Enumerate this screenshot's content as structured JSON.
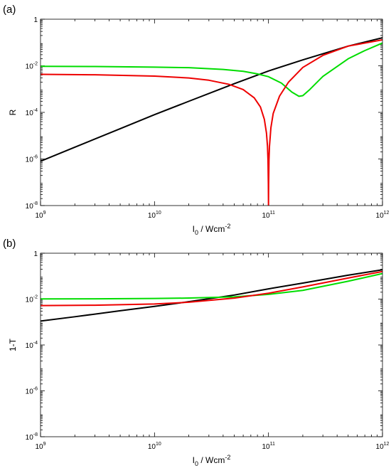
{
  "chart_data": [
    {
      "type": "line",
      "panel_label": "(a)",
      "xlabel": "I",
      "xlabel_sub": "0",
      "xlabel_unit": " / Wcm",
      "xlabel_sup": "-2",
      "ylabel": "R",
      "xscale": "log",
      "yscale": "log",
      "xlim": [
        1000000000.0,
        1000000000000.0
      ],
      "ylim": [
        1e-08,
        1
      ],
      "grid": false,
      "x_ticks": [
        {
          "base": "10",
          "exp": "9",
          "value": 1000000000.0
        },
        {
          "base": "10",
          "exp": "10",
          "value": 10000000000.0
        },
        {
          "base": "10",
          "exp": "11",
          "value": 100000000000.0
        },
        {
          "base": "10",
          "exp": "12",
          "value": 1000000000000.0
        }
      ],
      "y_ticks": [
        {
          "base": "1",
          "exp": "",
          "value": 1
        },
        {
          "base": "10",
          "exp": "-2",
          "value": 0.01
        },
        {
          "base": "10",
          "exp": "-4",
          "value": 0.0001
        },
        {
          "base": "10",
          "exp": "-6",
          "value": 1e-06
        },
        {
          "base": "10",
          "exp": "-8",
          "value": 1e-08
        }
      ],
      "series": [
        {
          "color": "#000000",
          "x": [
            1000000000.0,
            2000000000.0,
            5000000000.0,
            10000000000.0,
            20000000000.0,
            50000000000.0,
            100000000000.0,
            200000000000.0,
            500000000000.0,
            1000000000000.0
          ],
          "y": [
            8e-07,
            3.2e-06,
            2e-05,
            8e-05,
            0.0003,
            0.0017,
            0.006,
            0.018,
            0.07,
            0.16
          ]
        },
        {
          "color": "#00dd00",
          "x": [
            1000000000.0,
            3000000000.0,
            10000000000.0,
            20000000000.0,
            40000000000.0,
            60000000000.0,
            80000000000.0,
            100000000000.0,
            130000000000.0,
            160000000000.0,
            185000000000.0,
            200000000000.0,
            230000000000.0,
            300000000000.0,
            500000000000.0,
            700000000000.0,
            1000000000000.0
          ],
          "y": [
            0.0095,
            0.0093,
            0.0088,
            0.0083,
            0.007,
            0.0058,
            0.0045,
            0.0034,
            0.0018,
            0.00075,
            0.00049,
            0.00052,
            0.00095,
            0.0035,
            0.02,
            0.045,
            0.095
          ]
        },
        {
          "color": "#ee0000",
          "x": [
            1000000000.0,
            3000000000.0,
            10000000000.0,
            20000000000.0,
            30000000000.0,
            45000000000.0,
            60000000000.0,
            75000000000.0,
            85000000000.0,
            92000000000.0,
            96000000000.0,
            98000000000.0,
            99000000000.0,
            99700000000.0,
            100000000000.0,
            100300000000.0,
            101000000000.0,
            102000000000.0,
            105000000000.0,
            110000000000.0,
            125000000000.0,
            150000000000.0,
            200000000000.0,
            300000000000.0,
            500000000000.0,
            1000000000000.0
          ],
          "y": [
            0.0043,
            0.0041,
            0.0036,
            0.003,
            0.0024,
            0.0016,
            0.00095,
            0.00042,
            0.00017,
            5e-05,
            1.3e-05,
            3.5e-06,
            9e-07,
            8e-08,
            1e-08,
            8e-08,
            9e-07,
            3.5e-06,
            2.2e-05,
            9e-05,
            0.0005,
            0.002,
            0.0085,
            0.028,
            0.07,
            0.13
          ]
        }
      ]
    },
    {
      "type": "line",
      "panel_label": "(b)",
      "xlabel": "I",
      "xlabel_sub": "0",
      "xlabel_unit": " / Wcm",
      "xlabel_sup": "-2",
      "ylabel": "1-T",
      "xscale": "log",
      "yscale": "log",
      "xlim": [
        1000000000.0,
        1000000000000.0
      ],
      "ylim": [
        1e-08,
        1
      ],
      "grid": false,
      "x_ticks": [
        {
          "base": "10",
          "exp": "9",
          "value": 1000000000.0
        },
        {
          "base": "10",
          "exp": "10",
          "value": 10000000000.0
        },
        {
          "base": "10",
          "exp": "11",
          "value": 100000000000.0
        },
        {
          "base": "10",
          "exp": "12",
          "value": 1000000000000.0
        }
      ],
      "y_ticks": [
        {
          "base": "1",
          "exp": "",
          "value": 1
        },
        {
          "base": "10",
          "exp": "-2",
          "value": 0.01
        },
        {
          "base": "10",
          "exp": "-4",
          "value": 0.0001
        },
        {
          "base": "10",
          "exp": "-6",
          "value": 1e-06
        },
        {
          "base": "10",
          "exp": "-8",
          "value": 1e-08
        }
      ],
      "series": [
        {
          "color": "#000000",
          "x": [
            1000000000.0,
            2000000000.0,
            5000000000.0,
            10000000000.0,
            20000000000.0,
            50000000000.0,
            100000000000.0,
            200000000000.0,
            500000000000.0,
            1000000000000.0
          ],
          "y": [
            0.0011,
            0.0017,
            0.0031,
            0.0048,
            0.0077,
            0.015,
            0.028,
            0.05,
            0.11,
            0.19
          ]
        },
        {
          "color": "#00dd00",
          "x": [
            1000000000.0,
            3000000000.0,
            10000000000.0,
            20000000000.0,
            50000000000.0,
            100000000000.0,
            200000000000.0,
            500000000000.0,
            1000000000000.0
          ],
          "y": [
            0.0102,
            0.0103,
            0.0106,
            0.0111,
            0.0125,
            0.016,
            0.024,
            0.06,
            0.13
          ]
        },
        {
          "color": "#ee0000",
          "x": [
            1000000000.0,
            3000000000.0,
            10000000000.0,
            20000000000.0,
            50000000000.0,
            100000000000.0,
            200000000000.0,
            500000000000.0,
            1000000000000.0
          ],
          "y": [
            0.0052,
            0.0054,
            0.0061,
            0.0073,
            0.011,
            0.018,
            0.034,
            0.083,
            0.16
          ]
        }
      ]
    }
  ]
}
